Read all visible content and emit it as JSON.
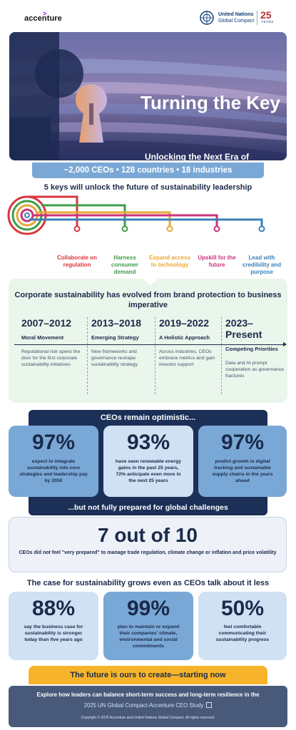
{
  "header": {
    "brand": "accenture",
    "partner_line1": "United Nations",
    "partner_line2": "Global Compact",
    "anniversary_number": "25",
    "anniversary_word": "YEARS"
  },
  "hero": {
    "title": "Turning the Key",
    "subtitle": "Unlocking the Next Era of Sustainability Leadership"
  },
  "stats_bar": "~2,000 CEOs • 128 countries • 18 industries",
  "keys": {
    "heading": "5 keys will unlock the future of sustainability leadership",
    "items": [
      {
        "label": "Collaborate on regulation",
        "color": "#d9363e"
      },
      {
        "label": "Harness consumer demand",
        "color": "#3f9e4a"
      },
      {
        "label": "Expand access to technology",
        "color": "#e8a735"
      },
      {
        "label": "Upskill for the future",
        "color": "#c9327a"
      },
      {
        "label": "Lead with credibility and purpose",
        "color": "#3a80b9"
      }
    ]
  },
  "evolution": {
    "title": "Corporate sustainability has evolved from brand protection to business imperative",
    "eras": [
      {
        "years": "2007–2012",
        "name": "Moral Movement",
        "desc": "Reputational risk opens the door for the first corporate sustainability initiatives"
      },
      {
        "years": "2013–2018",
        "name": "Emerging Strategy",
        "desc": "New frameworks and governance reshape sustainability strategy"
      },
      {
        "years": "2019–2022",
        "name": "A Holistic Approach",
        "desc": "Across industries, CEOs embrace metrics and gain investor support"
      },
      {
        "years": "2023–Present",
        "name": "Competing Priorities",
        "desc": "Data and AI prompt cooperation as governance fractures"
      }
    ]
  },
  "optimism": {
    "heading": "CEOs remain optimistic...",
    "cards": [
      {
        "value": "97%",
        "text": "expect to integrate sustainability into core strategies and leadership pay by 2050"
      },
      {
        "value": "93%",
        "text": "have seen renewable energy gains in the past 25 years, 72% anticipate even more in the next 25 years"
      },
      {
        "value": "97%",
        "text": "predict growth in digital tracking and sustainable supply chains in the years ahead"
      }
    ],
    "footer": "...but not fully prepared for global challenges"
  },
  "preparedness": {
    "value": "7 out of 10",
    "text": "CEOs did not feel \"very prepared\" to manage trade regulation, climate change or inflation and price volatility"
  },
  "case": {
    "heading": "The case for sustainability grows even as CEOs talk about it less",
    "cards": [
      {
        "value": "88%",
        "text": "say the business case for sustainability is stronger today than five years ago"
      },
      {
        "value": "99%",
        "text": "plan to maintain or expand their companies' climate, environmental and social commitments"
      },
      {
        "value": "50%",
        "text": "feel comfortable communicating their sustainability progress"
      }
    ]
  },
  "future": "The future is ours to create—starting now",
  "footer": {
    "line1": "Explore how leaders can balance short-term success and long-term resilience in the",
    "link": "2025 UN Global Compact-Accenture CEO Study",
    "copyright": "Copyright © 2025 Accenture and United Nations Global Compact. All rights reserved."
  }
}
